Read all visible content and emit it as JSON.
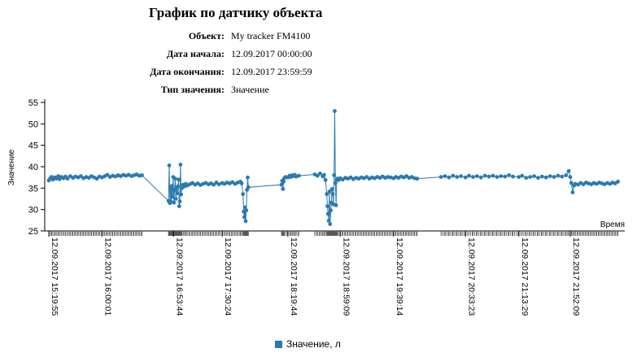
{
  "report": {
    "title": "График по датчику объекта",
    "fields": [
      {
        "label": "Объект:",
        "value": "My tracker FM4100"
      },
      {
        "label": "Дата начала:",
        "value": "12.09.2017 00:00:00"
      },
      {
        "label": "Дата окончания:",
        "value": "12.09.2017 23:59:59"
      },
      {
        "label": "Тип значения:",
        "value": "Значение"
      }
    ]
  },
  "chart_data": {
    "type": "line",
    "ylabel": "Значение",
    "xlabel": "Время",
    "ylim": [
      25,
      55
    ],
    "yticks": [
      25,
      30,
      35,
      40,
      45,
      50,
      55
    ],
    "grid": false,
    "legend_position": "bottom-center",
    "series_color": "#2a7ab0",
    "x_tick_labels": [
      "12.09.2017 15:19:55",
      "12.09.2017 16:00:01",
      "12.09.2017 16:53:44",
      "12.09.2017 17:30:24",
      "12.09.2017 18:19:44",
      "12.09.2017 18:59:09",
      "12.09.2017 19:39:14",
      "12.09.2017 20:33:23",
      "12.09.2017 21:13:29",
      "12.09.2017 21:52:09"
    ],
    "series": [
      {
        "name": "Значение, л",
        "points": [
          [
            "15:19:55",
            36.8
          ],
          [
            "15:21:00",
            37.3
          ],
          [
            "15:22:00",
            37.6
          ],
          [
            "15:23:00",
            37.0
          ],
          [
            "15:24:30",
            37.5
          ],
          [
            "15:25:30",
            37.2
          ],
          [
            "15:27:00",
            37.8
          ],
          [
            "15:28:00",
            37.1
          ],
          [
            "15:29:30",
            37.6
          ],
          [
            "15:31:00",
            37.3
          ],
          [
            "15:32:30",
            37.7
          ],
          [
            "15:34:00",
            37.2
          ],
          [
            "15:36:00",
            37.8
          ],
          [
            "15:38:00",
            37.4
          ],
          [
            "15:40:00",
            37.7
          ],
          [
            "15:42:00",
            37.5
          ],
          [
            "15:44:00",
            37.8
          ],
          [
            "15:46:00",
            37.3
          ],
          [
            "15:48:00",
            37.6
          ],
          [
            "15:50:00",
            37.4
          ],
          [
            "15:52:00",
            37.8
          ],
          [
            "15:54:00",
            37.5
          ],
          [
            "15:56:00",
            37.2
          ],
          [
            "15:58:00",
            37.7
          ],
          [
            "16:00:01",
            37.5
          ],
          [
            "16:02:00",
            37.8
          ],
          [
            "16:04:00",
            38.1
          ],
          [
            "16:06:00",
            37.6
          ],
          [
            "16:08:00",
            37.9
          ],
          [
            "16:10:00",
            37.7
          ],
          [
            "16:12:00",
            38.0
          ],
          [
            "16:14:00",
            37.8
          ],
          [
            "16:16:00",
            38.1
          ],
          [
            "16:18:00",
            37.9
          ],
          [
            "16:20:00",
            38.1
          ],
          [
            "16:22:00",
            37.8
          ],
          [
            "16:24:00",
            38.0
          ],
          [
            "16:26:00",
            38.2
          ],
          [
            "16:28:00",
            37.9
          ],
          [
            "16:30:00",
            38.0
          ],
          [
            "16:50:00",
            32.0
          ],
          [
            "16:50:30",
            40.3
          ],
          [
            "16:51:00",
            31.5
          ],
          [
            "16:51:30",
            34.8
          ],
          [
            "16:52:00",
            31.8
          ],
          [
            "16:52:30",
            35.5
          ],
          [
            "16:53:00",
            33.0
          ],
          [
            "16:53:30",
            37.6
          ],
          [
            "16:54:00",
            31.6
          ],
          [
            "16:54:30",
            34.6
          ],
          [
            "16:55:00",
            37.2
          ],
          [
            "16:55:30",
            32.5
          ],
          [
            "16:56:00",
            35.0
          ],
          [
            "16:56:30",
            33.8
          ],
          [
            "16:57:00",
            35.4
          ],
          [
            "16:57:30",
            37.0
          ],
          [
            "16:58:00",
            30.8
          ],
          [
            "16:58:30",
            31.9
          ],
          [
            "16:59:00",
            40.5
          ],
          [
            "16:59:30",
            33.5
          ],
          [
            "17:00:00",
            35.0
          ],
          [
            "17:01:00",
            35.8
          ],
          [
            "17:02:00",
            35.4
          ],
          [
            "17:03:00",
            36.0
          ],
          [
            "17:04:00",
            35.6
          ],
          [
            "17:06:00",
            35.9
          ],
          [
            "17:08:00",
            36.2
          ],
          [
            "17:10:00",
            35.8
          ],
          [
            "17:12:00",
            36.1
          ],
          [
            "17:14:00",
            35.7
          ],
          [
            "17:16:00",
            36.0
          ],
          [
            "17:18:00",
            36.2
          ],
          [
            "17:20:00",
            35.9
          ],
          [
            "17:22:00",
            36.1
          ],
          [
            "17:24:00",
            35.8
          ],
          [
            "17:26:00",
            36.3
          ],
          [
            "17:28:00",
            35.9
          ],
          [
            "17:30:24",
            36.2
          ],
          [
            "17:32:00",
            36.0
          ],
          [
            "17:34:00",
            36.3
          ],
          [
            "17:36:00",
            36.1
          ],
          [
            "17:38:00",
            36.4
          ],
          [
            "17:40:00",
            36.0
          ],
          [
            "17:42:00",
            36.3
          ],
          [
            "17:44:00",
            36.5
          ],
          [
            "17:45:00",
            36.1
          ],
          [
            "17:46:00",
            33.6
          ],
          [
            "17:46:30",
            29.5
          ],
          [
            "17:47:00",
            28.2
          ],
          [
            "17:47:30",
            30.5
          ],
          [
            "17:48:00",
            27.3
          ],
          [
            "17:48:30",
            29.8
          ],
          [
            "17:49:00",
            34.6
          ],
          [
            "17:49:30",
            37.5
          ],
          [
            "17:50:00",
            35.2
          ],
          [
            "18:15:00",
            35.8
          ],
          [
            "18:15:30",
            36.7
          ],
          [
            "18:16:00",
            34.8
          ],
          [
            "18:16:30",
            36.5
          ],
          [
            "18:17:00",
            37.3
          ],
          [
            "18:18:00",
            37.6
          ],
          [
            "18:19:44",
            37.5
          ],
          [
            "18:21:00",
            37.9
          ],
          [
            "18:22:00",
            37.6
          ],
          [
            "18:23:00",
            38.0
          ],
          [
            "18:24:00",
            37.8
          ],
          [
            "18:25:00",
            38.1
          ],
          [
            "18:26:00",
            37.7
          ],
          [
            "18:28:00",
            37.9
          ],
          [
            "18:40:00",
            38.2
          ],
          [
            "18:42:00",
            37.9
          ],
          [
            "18:44:00",
            38.4
          ],
          [
            "18:46:00",
            37.7
          ],
          [
            "18:47:00",
            38.1
          ],
          [
            "18:48:00",
            36.9
          ],
          [
            "18:49:00",
            33.6
          ],
          [
            "18:49:30",
            30.8
          ],
          [
            "18:50:00",
            29.0
          ],
          [
            "18:50:30",
            27.4
          ],
          [
            "18:51:00",
            34.2
          ],
          [
            "18:51:30",
            26.6
          ],
          [
            "18:52:00",
            29.8
          ],
          [
            "18:52:30",
            31.6
          ],
          [
            "18:53:00",
            34.8
          ],
          [
            "18:53:30",
            33.6
          ],
          [
            "18:54:00",
            31.2
          ],
          [
            "18:54:30",
            38.0
          ],
          [
            "18:55:00",
            53.0
          ],
          [
            "18:55:30",
            36.2
          ],
          [
            "18:56:00",
            31.0
          ],
          [
            "18:56:30",
            36.9
          ],
          [
            "18:57:00",
            37.2
          ],
          [
            "18:58:00",
            36.9
          ],
          [
            "18:59:09",
            37.3
          ],
          [
            "19:01:00",
            37.0
          ],
          [
            "19:03:00",
            37.4
          ],
          [
            "19:05:00",
            37.2
          ],
          [
            "19:07:00",
            37.5
          ],
          [
            "19:09:00",
            37.1
          ],
          [
            "19:11:00",
            37.4
          ],
          [
            "19:13:00",
            37.2
          ],
          [
            "19:15:00",
            37.5
          ],
          [
            "19:17:00",
            37.3
          ],
          [
            "19:19:00",
            37.6
          ],
          [
            "19:21:00",
            37.2
          ],
          [
            "19:23:00",
            37.5
          ],
          [
            "19:25:00",
            37.3
          ],
          [
            "19:27:00",
            37.6
          ],
          [
            "19:29:00",
            37.4
          ],
          [
            "19:31:00",
            37.7
          ],
          [
            "19:33:00",
            37.4
          ],
          [
            "19:35:00",
            37.6
          ],
          [
            "19:37:00",
            37.5
          ],
          [
            "19:39:14",
            37.3
          ],
          [
            "19:41:00",
            37.6
          ],
          [
            "19:43:00",
            37.4
          ],
          [
            "19:45:00",
            37.7
          ],
          [
            "19:47:00",
            37.5
          ],
          [
            "19:49:00",
            37.8
          ],
          [
            "19:51:00",
            37.4
          ],
          [
            "19:53:00",
            37.6
          ],
          [
            "19:55:00",
            37.3
          ],
          [
            "19:57:00",
            37.2
          ],
          [
            "20:15:00",
            37.6
          ],
          [
            "20:18:00",
            37.8
          ],
          [
            "20:21:00",
            37.5
          ],
          [
            "20:24:00",
            37.9
          ],
          [
            "20:27:00",
            37.6
          ],
          [
            "20:30:00",
            37.8
          ],
          [
            "20:33:23",
            37.5
          ],
          [
            "20:36:00",
            37.9
          ],
          [
            "20:39:00",
            37.6
          ],
          [
            "20:42:00",
            37.8
          ],
          [
            "20:45:00",
            37.5
          ],
          [
            "20:48:00",
            37.9
          ],
          [
            "20:51:00",
            37.7
          ],
          [
            "20:54:00",
            37.9
          ],
          [
            "20:57:00",
            37.6
          ],
          [
            "21:00:00",
            37.8
          ],
          [
            "21:03:00",
            37.7
          ],
          [
            "21:06:00",
            38.0
          ],
          [
            "21:09:00",
            37.7
          ],
          [
            "21:13:29",
            37.6
          ],
          [
            "21:16:00",
            37.9
          ],
          [
            "21:19:00",
            37.4
          ],
          [
            "21:22:00",
            37.6
          ],
          [
            "21:25:00",
            37.8
          ],
          [
            "21:28:00",
            37.4
          ],
          [
            "21:31:00",
            37.7
          ],
          [
            "21:34:00",
            37.5
          ],
          [
            "21:37:00",
            37.8
          ],
          [
            "21:40:00",
            37.6
          ],
          [
            "21:43:00",
            37.9
          ],
          [
            "21:46:00",
            37.7
          ],
          [
            "21:49:00",
            38.0
          ],
          [
            "21:51:00",
            39.0
          ],
          [
            "21:52:09",
            37.6
          ],
          [
            "21:53:00",
            36.2
          ],
          [
            "21:54:00",
            34.0
          ],
          [
            "21:55:00",
            35.6
          ],
          [
            "21:56:00",
            36.0
          ],
          [
            "21:58:00",
            35.8
          ],
          [
            "22:00:00",
            36.2
          ],
          [
            "22:02:00",
            35.9
          ],
          [
            "22:04:00",
            36.3
          ],
          [
            "22:06:00",
            36.1
          ],
          [
            "22:08:00",
            35.9
          ],
          [
            "22:10:00",
            36.2
          ],
          [
            "22:12:00",
            36.0
          ],
          [
            "22:14:00",
            36.3
          ],
          [
            "22:16:00",
            36.1
          ],
          [
            "22:18:00",
            35.9
          ],
          [
            "22:20:00",
            36.2
          ],
          [
            "22:22:00",
            36.0
          ],
          [
            "22:24:00",
            36.3
          ],
          [
            "22:26:00",
            36.1
          ],
          [
            "22:28:00",
            36.5
          ]
        ]
      }
    ]
  }
}
